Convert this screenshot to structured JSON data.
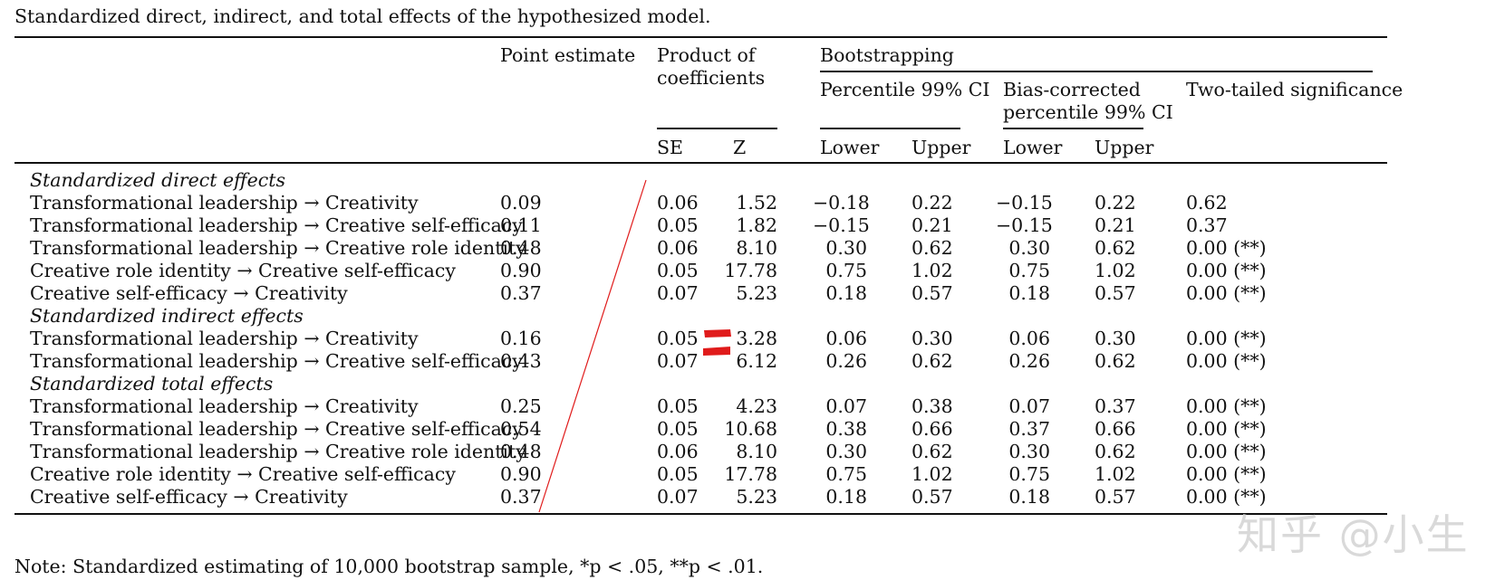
{
  "caption": "Standardized direct, indirect, and total effects of the hypothesized model.",
  "headers": {
    "point_estimate": "Point estimate",
    "product_line1": "Product of",
    "product_line2": "coefficients",
    "bootstrapping": "Bootstrapping",
    "percentile": "Percentile 99% CI",
    "bias_line1": "Bias-corrected",
    "bias_line2": "percentile 99% CI",
    "two_tailed": "Two-tailed significance",
    "se": "SE",
    "z": "Z",
    "p_lower": "Lower",
    "p_upper": "Upper",
    "b_lower": "Lower",
    "b_upper": "Upper"
  },
  "sections": [
    {
      "title": "Standardized direct effects",
      "rows": [
        {
          "effect": "Transformational leadership → Creativity",
          "point": "0.09",
          "se": "0.06",
          "z": "1.52",
          "pl": "−0.18",
          "pu": "0.22",
          "bl": "−0.15",
          "bu": "0.22",
          "sig": "0.62"
        },
        {
          "effect": "Transformational leadership → Creative self-efficacy",
          "point": "0.11",
          "se": "0.05",
          "z": "1.82",
          "pl": "−0.15",
          "pu": "0.21",
          "bl": "−0.15",
          "bu": "0.21",
          "sig": "0.37"
        },
        {
          "effect": "Transformational leadership → Creative role identity",
          "point": "0.48",
          "se": "0.06",
          "z": "8.10",
          "pl": "0.30",
          "pu": "0.62",
          "bl": "0.30",
          "bu": "0.62",
          "sig": "0.00 (**)"
        },
        {
          "effect": "Creative role identity → Creative self-efficacy",
          "point": "0.90",
          "se": "0.05",
          "z": "17.78",
          "pl": "0.75",
          "pu": "1.02",
          "bl": "0.75",
          "bu": "1.02",
          "sig": "0.00 (**)"
        },
        {
          "effect": "Creative self-efficacy → Creativity",
          "point": "0.37",
          "se": "0.07",
          "z": "5.23",
          "pl": "0.18",
          "pu": "0.57",
          "bl": "0.18",
          "bu": "0.57",
          "sig": "0.00 (**)"
        }
      ]
    },
    {
      "title": "Standardized indirect effects",
      "rows": [
        {
          "effect": "Transformational leadership → Creativity",
          "point": "0.16",
          "se": "0.05",
          "z": "3.28",
          "pl": "0.06",
          "pu": "0.30",
          "bl": "0.06",
          "bu": "0.30",
          "sig": "0.00 (**)"
        },
        {
          "effect": "Transformational leadership → Creative self-efficacy",
          "point": "0.43",
          "se": "0.07",
          "z": "6.12",
          "pl": "0.26",
          "pu": "0.62",
          "bl": "0.26",
          "bu": "0.62",
          "sig": "0.00 (**)"
        }
      ]
    },
    {
      "title": "Standardized total effects",
      "rows": [
        {
          "effect": "Transformational leadership → Creativity",
          "point": "0.25",
          "se": "0.05",
          "z": "4.23",
          "pl": "0.07",
          "pu": "0.38",
          "bl": "0.07",
          "bu": "0.37",
          "sig": "0.00 (**)"
        },
        {
          "effect": "Transformational leadership → Creative self-efficacy",
          "point": "0.54",
          "se": "0.05",
          "z": "10.68",
          "pl": "0.38",
          "pu": "0.66",
          "bl": "0.37",
          "bu": "0.66",
          "sig": "0.00 (**)"
        },
        {
          "effect": "Transformational leadership → Creative role identity",
          "point": "0.48",
          "se": "0.06",
          "z": "8.10",
          "pl": "0.30",
          "pu": "0.62",
          "bl": "0.30",
          "bu": "0.62",
          "sig": "0.00 (**)"
        },
        {
          "effect": "Creative role identity → Creative self-efficacy",
          "point": "0.90",
          "se": "0.05",
          "z": "17.78",
          "pl": "0.75",
          "pu": "1.02",
          "bl": "0.75",
          "bu": "1.02",
          "sig": "0.00 (**)"
        },
        {
          "effect": "Creative self-efficacy → Creativity",
          "point": "0.37",
          "se": "0.07",
          "z": "5.23",
          "pl": "0.18",
          "pu": "0.57",
          "bl": "0.18",
          "bu": "0.57",
          "sig": "0.00 (**)"
        }
      ]
    }
  ],
  "note": "Note: Standardized estimating of 10,000 bootstrap sample, *p < .05, **p < .01.",
  "watermark": "知乎 @小生",
  "annotation_color": "#e01b1b"
}
